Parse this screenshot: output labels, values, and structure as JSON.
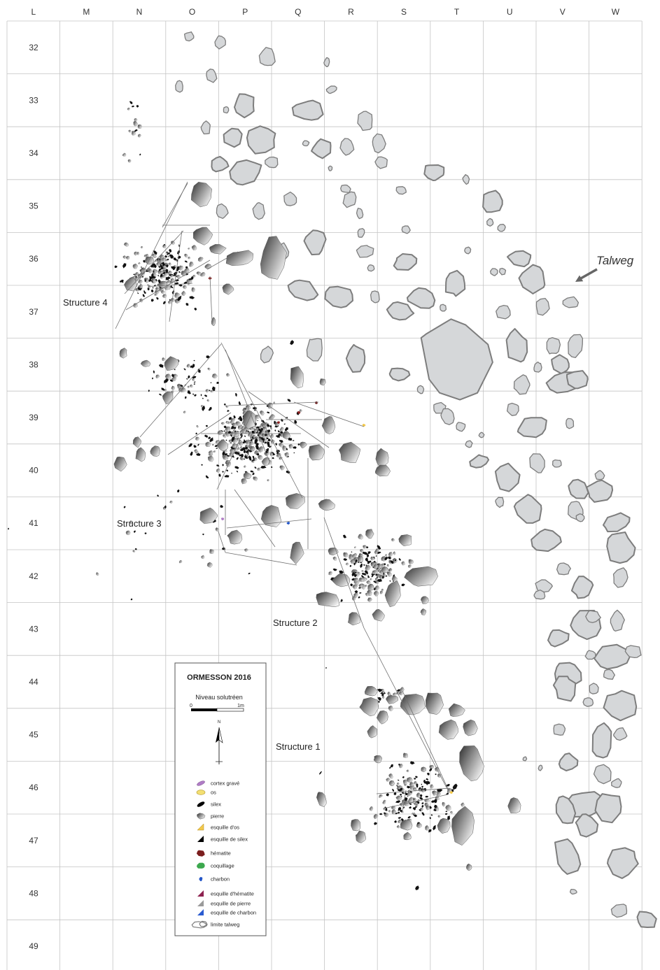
{
  "columns": [
    "L",
    "M",
    "N",
    "O",
    "P",
    "Q",
    "R",
    "S",
    "T",
    "U",
    "V",
    "W"
  ],
  "rows": [
    "32",
    "33",
    "34",
    "35",
    "36",
    "37",
    "38",
    "39",
    "40",
    "41",
    "42",
    "43",
    "44",
    "45",
    "46",
    "47",
    "48",
    "49"
  ],
  "structures": {
    "s4": "Structure 4",
    "s3": "Structure 3",
    "s2": "Structure 2",
    "s1": "Structure 1"
  },
  "talweg_label": "Talweg",
  "legend": {
    "title": "ORMESSON 2016",
    "subtitle": "Niveau solutréen",
    "scale_start": "0",
    "scale_end": "1m",
    "north": "N",
    "items": [
      {
        "label": "cortex gravé",
        "icon": "engraved-cortex-icon",
        "color": "#b07cc6"
      },
      {
        "label": "os",
        "icon": "bone-icon",
        "color": "#f3df72"
      },
      {
        "label": "silex",
        "icon": "flint-icon",
        "color": "#000000"
      },
      {
        "label": "pierre",
        "icon": "stone-icon",
        "color": "#8a8a8a"
      },
      {
        "label": "esquille d'os",
        "icon": "bone-chip-icon",
        "color": "#f2c84b"
      },
      {
        "label": "esquille de silex",
        "icon": "flint-chip-icon",
        "color": "#000000"
      },
      {
        "label": "hématite",
        "icon": "hematite-icon",
        "color": "#7b1e1e"
      },
      {
        "label": "coquillage",
        "icon": "shell-icon",
        "color": "#3ca84e"
      },
      {
        "label": "charbon",
        "icon": "charcoal-icon",
        "color": "#2456c8"
      },
      {
        "label": "esquille d'hématite",
        "icon": "hematite-chip-icon",
        "color": "#8e2250"
      },
      {
        "label": "esquille de pierre",
        "icon": "stone-chip-icon",
        "color": "#9a9a9a"
      },
      {
        "label": "esquille de charbon",
        "icon": "charcoal-chip-icon",
        "color": "#2a5bd0"
      },
      {
        "label": "limite talweg",
        "icon": "talweg-limit-icon",
        "color": "#7d7d7d"
      }
    ]
  },
  "colors": {
    "grid": "#c4c4c4",
    "talweg_fill": "#d5d7d9",
    "talweg_stroke": "#7d7d7d",
    "stone_dark": "#3c3c3c",
    "stone_mid": "#a8a8a8",
    "stone_light": "#ffffff",
    "flint": "#111111",
    "refit_line": "#6f6f6f"
  }
}
